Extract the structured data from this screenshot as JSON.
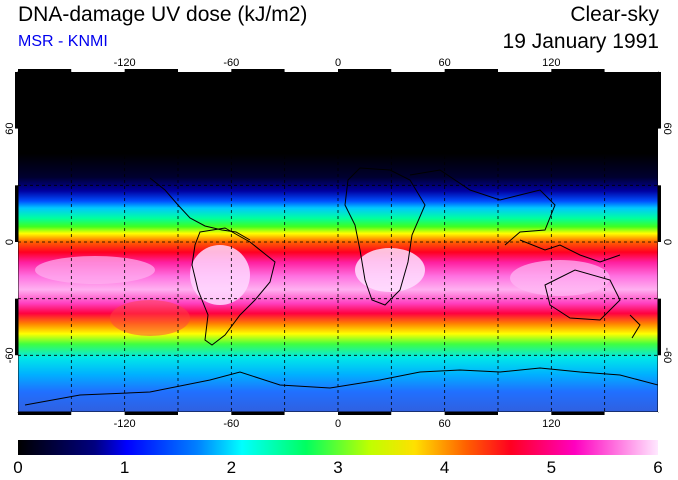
{
  "header": {
    "title": "DNA-damage UV dose (kJ/m2)",
    "subtitle": "MSR - KNMI",
    "sky_condition": "Clear-sky",
    "date": "19 January 1991"
  },
  "map": {
    "lon_ticks": [
      {
        "value": -120,
        "label": "-120"
      },
      {
        "value": -60,
        "label": "-60"
      },
      {
        "value": 0,
        "label": "0"
      },
      {
        "value": 60,
        "label": "60"
      },
      {
        "value": 120,
        "label": "120"
      }
    ],
    "lat_ticks": [
      {
        "value": 60,
        "label": "60",
        "right_label": "60"
      },
      {
        "value": 0,
        "label": "0",
        "right_label": "0"
      },
      {
        "value": -60,
        "label": "-60",
        "right_label": "-60"
      }
    ],
    "lon_range": [
      -180,
      180
    ],
    "lat_range": [
      -90,
      90
    ]
  },
  "colorbar": {
    "min": 0,
    "max": 6,
    "labels": [
      "0",
      "1",
      "2",
      "3",
      "4",
      "5",
      "6"
    ],
    "colors": [
      "#000000",
      "#0000cc",
      "#0060ff",
      "#00e8ff",
      "#00ff60",
      "#ffff00",
      "#ff8000",
      "#ff0020",
      "#ff00c0",
      "#ffe0ff"
    ]
  }
}
